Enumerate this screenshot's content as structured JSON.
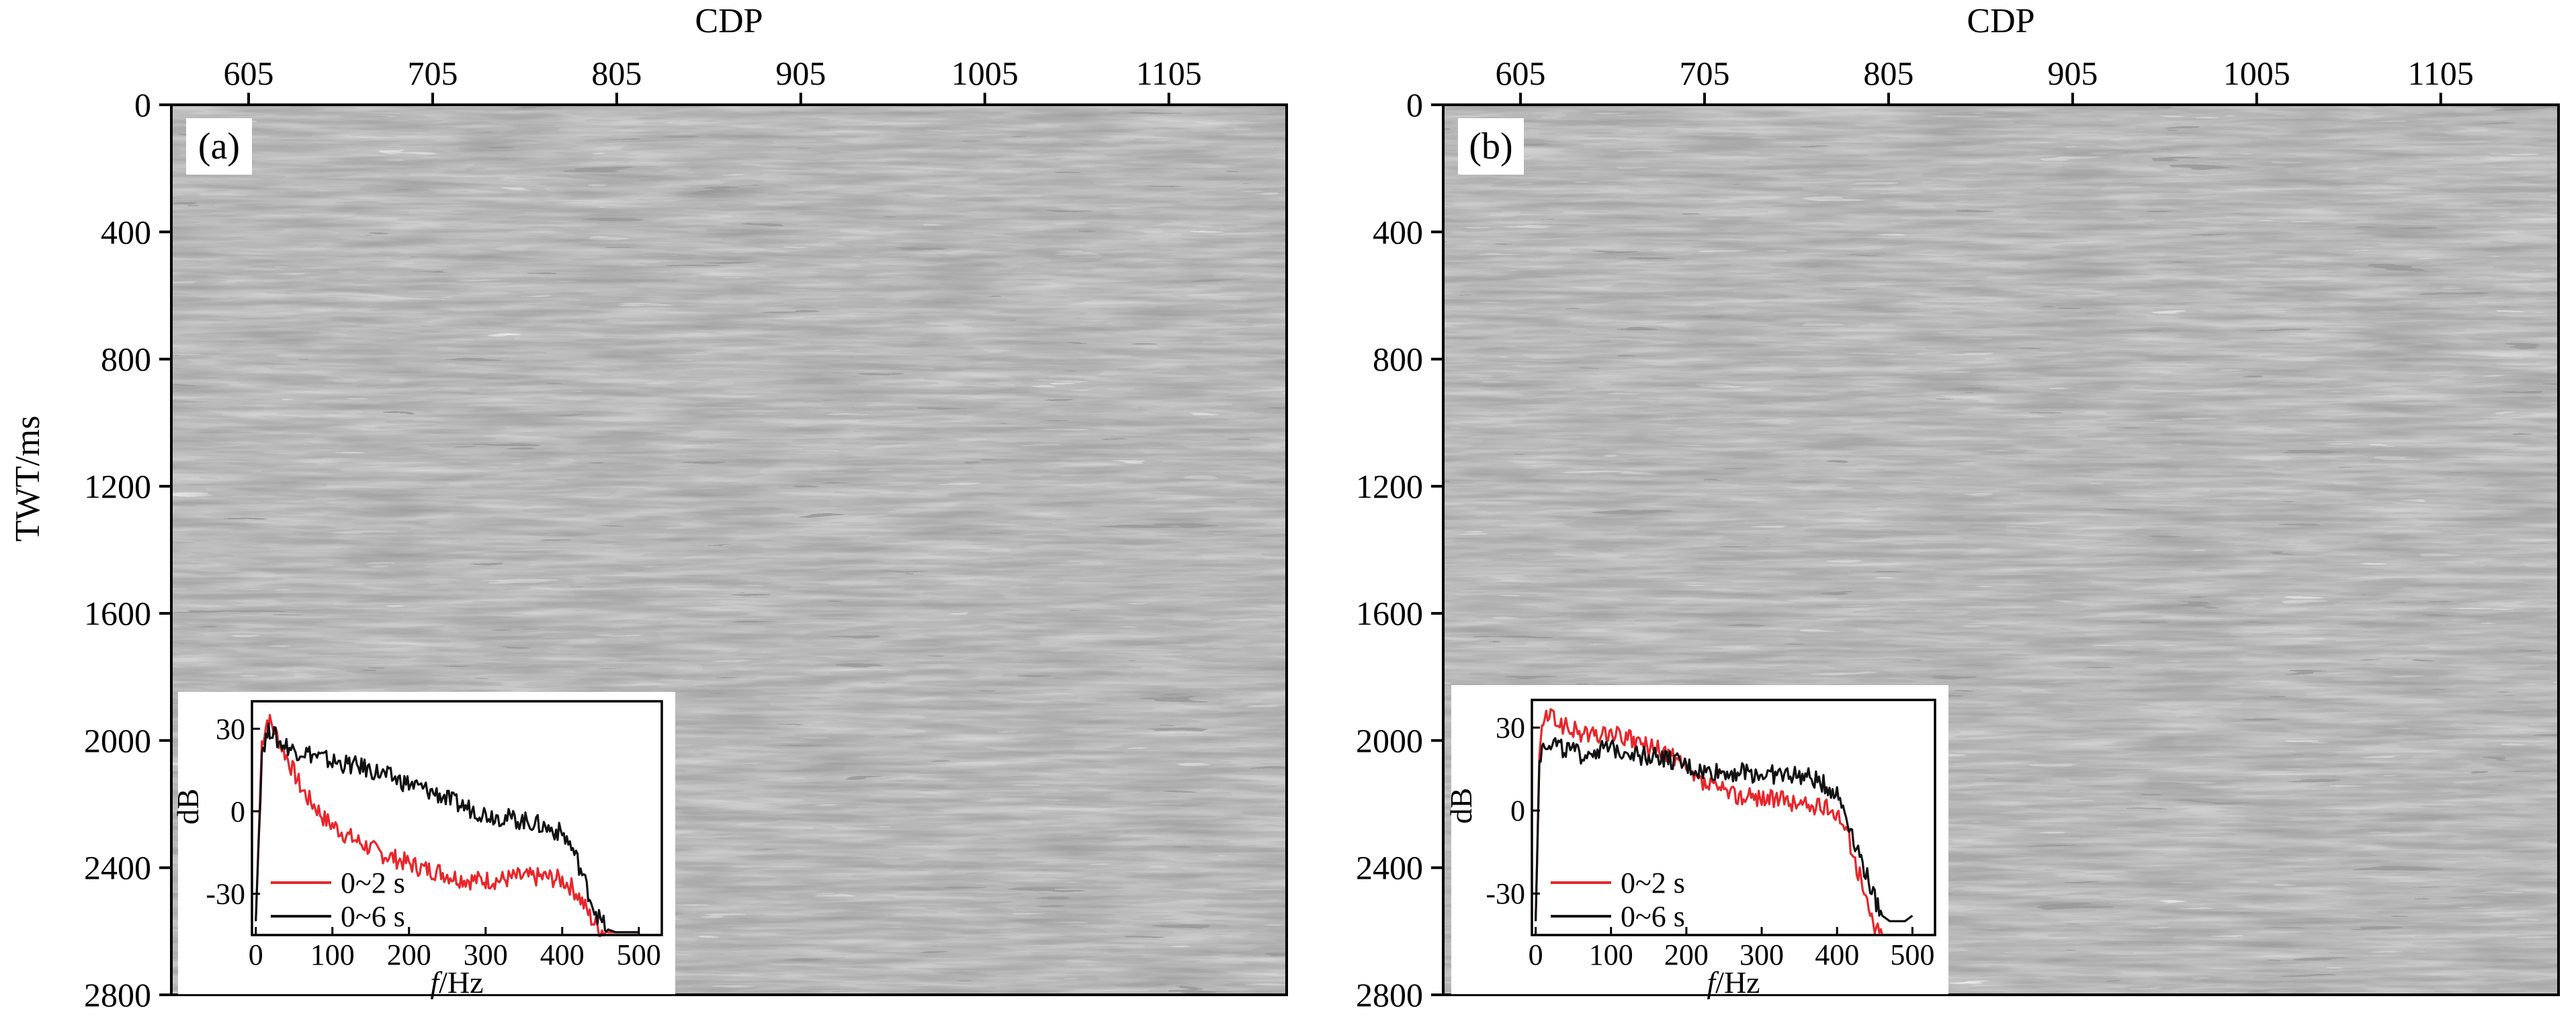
{
  "figure": {
    "ylabel": "TWT/ms"
  },
  "chart_data": [
    {
      "type": "heatmap",
      "panel": "(a)",
      "xlabel": "CDP",
      "ylabel": "TWT/ms",
      "x_ticks": [
        605,
        705,
        805,
        905,
        1005,
        1105
      ],
      "y_ticks": [
        0,
        400,
        800,
        1200,
        1600,
        2000,
        2400,
        2800
      ],
      "xlim": [
        563,
        1169
      ],
      "ylim": [
        0,
        2800
      ],
      "inset": {
        "type": "line",
        "xlabel_italic": "f",
        "xlabel_rest": "/Hz",
        "ylabel": "dB",
        "x_ticks": [
          0,
          100,
          200,
          300,
          400,
          500
        ],
        "y_ticks": [
          30,
          0,
          -30
        ],
        "xlim": [
          -5,
          530
        ],
        "ylim": [
          -45,
          40
        ],
        "series": [
          {
            "name": "0~2 s",
            "color": "#e8262b",
            "x": [
              0,
              8,
              15,
              20,
              30,
              40,
              50,
              60,
              70,
              80,
              90,
              100,
              110,
              120,
              140,
              160,
              180,
              200,
              220,
              240,
              260,
              280,
              300,
              320,
              340,
              360,
              380,
              400,
              410,
              420,
              430,
              440,
              450,
              460,
              470,
              480,
              490,
              500
            ],
            "y": [
              -40,
              25,
              33,
              32,
              26,
              20,
              14,
              8,
              4,
              1,
              -3,
              -5,
              -7,
              -9,
              -12,
              -15,
              -17,
              -19,
              -21,
              -22,
              -24,
              -25,
              -25,
              -25,
              -24,
              -24,
              -24,
              -25,
              -27,
              -30,
              -35,
              -40,
              -43,
              -44,
              -44,
              -44,
              -44,
              -44
            ]
          },
          {
            "name": "0~6 s",
            "color": "#111111",
            "x": [
              0,
              8,
              15,
              20,
              30,
              40,
              50,
              60,
              80,
              100,
              120,
              140,
              160,
              180,
              200,
              220,
              240,
              260,
              280,
              300,
              320,
              340,
              360,
              380,
              400,
              410,
              420,
              430,
              440,
              450,
              460,
              470,
              480,
              490,
              500
            ],
            "y": [
              -40,
              22,
              28,
              30,
              25,
              24,
              22,
              22,
              20,
              18,
              17,
              16,
              14,
              12,
              10,
              8,
              6,
              3,
              1,
              -1,
              -2,
              -3,
              -4,
              -6,
              -8,
              -12,
              -18,
              -26,
              -34,
              -40,
              -43,
              -44,
              -44,
              -44,
              -44
            ]
          }
        ]
      }
    },
    {
      "type": "heatmap",
      "panel": "(b)",
      "xlabel": "CDP",
      "ylabel": "",
      "x_ticks": [
        605,
        705,
        805,
        905,
        1005,
        1105
      ],
      "y_ticks": [
        0,
        400,
        800,
        1200,
        1600,
        2000,
        2400,
        2800
      ],
      "xlim": [
        563,
        1169
      ],
      "ylim": [
        0,
        2800
      ],
      "inset": {
        "type": "line",
        "xlabel_italic": "f",
        "xlabel_rest": "/Hz",
        "ylabel": "dB",
        "x_ticks": [
          0,
          100,
          200,
          300,
          400,
          500
        ],
        "y_ticks": [
          30,
          0,
          -30
        ],
        "xlim": [
          -5,
          530
        ],
        "ylim": [
          -45,
          40
        ],
        "series": [
          {
            "name": "0~2 s",
            "color": "#e8262b",
            "x": [
              0,
              5,
              10,
              20,
              40,
              60,
              80,
              100,
              120,
              140,
              160,
              180,
              200,
              220,
              240,
              260,
              280,
              300,
              320,
              340,
              360,
              380,
              400,
              410,
              420,
              430,
              440,
              450,
              460,
              470,
              480
            ],
            "y": [
              -40,
              20,
              33,
              34,
              30,
              28,
              27,
              28,
              26,
              24,
              22,
              20,
              14,
              10,
              8,
              6,
              5,
              5,
              4,
              3,
              2,
              1,
              0,
              -6,
              -14,
              -24,
              -34,
              -42,
              -45,
              -45,
              -45
            ]
          },
          {
            "name": "0~6 s",
            "color": "#111111",
            "x": [
              0,
              5,
              10,
              20,
              40,
              60,
              80,
              100,
              120,
              140,
              160,
              180,
              200,
              220,
              240,
              260,
              280,
              300,
              320,
              340,
              360,
              380,
              400,
              410,
              420,
              430,
              440,
              450,
              460,
              470,
              480,
              490,
              500
            ],
            "y": [
              -40,
              18,
              24,
              25,
              22,
              20,
              22,
              22,
              22,
              20,
              20,
              18,
              16,
              14,
              14,
              14,
              14,
              13,
              13,
              13,
              12,
              10,
              6,
              0,
              -8,
              -16,
              -24,
              -32,
              -38,
              -40,
              -40,
              -40,
              -38
            ]
          }
        ]
      }
    }
  ]
}
